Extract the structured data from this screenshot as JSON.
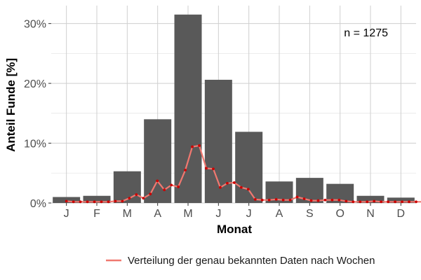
{
  "chart_data": {
    "type": "bar",
    "title": "",
    "xlabel": "Monat",
    "ylabel": "Anteil Funde [%]",
    "categories": [
      "J",
      "F",
      "M",
      "A",
      "M",
      "J",
      "J",
      "A",
      "S",
      "O",
      "N",
      "D"
    ],
    "values": [
      1.0,
      1.2,
      5.3,
      14.0,
      31.5,
      20.6,
      11.9,
      3.6,
      4.2,
      3.2,
      1.2,
      0.9
    ],
    "yticks": [
      0,
      10,
      20,
      30
    ],
    "ytick_labels": [
      "0%",
      "10%",
      "20%",
      "30%"
    ],
    "ylim": [
      0,
      33
    ],
    "grid": true,
    "annotation": "n = 1275",
    "bar_color": "#595959",
    "series": [
      {
        "name": "Verteilung der genau bekannten Daten nach Wochen",
        "type": "line",
        "color": "#f07870",
        "point_color": "#cc0000",
        "x": [
          1.0,
          1.23,
          1.46,
          1.69,
          1.92,
          2.15,
          2.38,
          2.61,
          2.84,
          3.07,
          3.3,
          3.53,
          3.76,
          3.99,
          4.22,
          4.45,
          4.68,
          4.91,
          5.14,
          5.37,
          5.6,
          5.83,
          6.06,
          6.29,
          6.52,
          6.75,
          6.98,
          7.21,
          7.44,
          7.67,
          7.9,
          8.13,
          8.36,
          8.59,
          8.82,
          9.05,
          9.28,
          9.51,
          9.74,
          9.97,
          10.2,
          10.43,
          10.66,
          10.89,
          11.12,
          11.35,
          11.58,
          11.81,
          12.04,
          12.27,
          12.5,
          12.73
        ],
        "values": [
          0.3,
          0.2,
          0.2,
          0.2,
          0.2,
          0.2,
          0.2,
          0.3,
          0.3,
          0.8,
          1.4,
          0.8,
          1.5,
          3.7,
          2.2,
          3.0,
          2.7,
          5.5,
          9.4,
          9.6,
          5.8,
          5.7,
          2.6,
          3.3,
          3.4,
          2.6,
          2.3,
          0.6,
          0.5,
          0.5,
          0.6,
          0.5,
          0.5,
          1.0,
          0.7,
          0.4,
          0.4,
          0.5,
          0.5,
          0.5,
          0.3,
          0.2,
          0.2,
          0.2,
          0.3,
          0.2,
          0.2,
          0.2,
          0.2,
          0.2,
          0.2,
          0.2
        ]
      }
    ],
    "legend_position": "bottom-right"
  }
}
